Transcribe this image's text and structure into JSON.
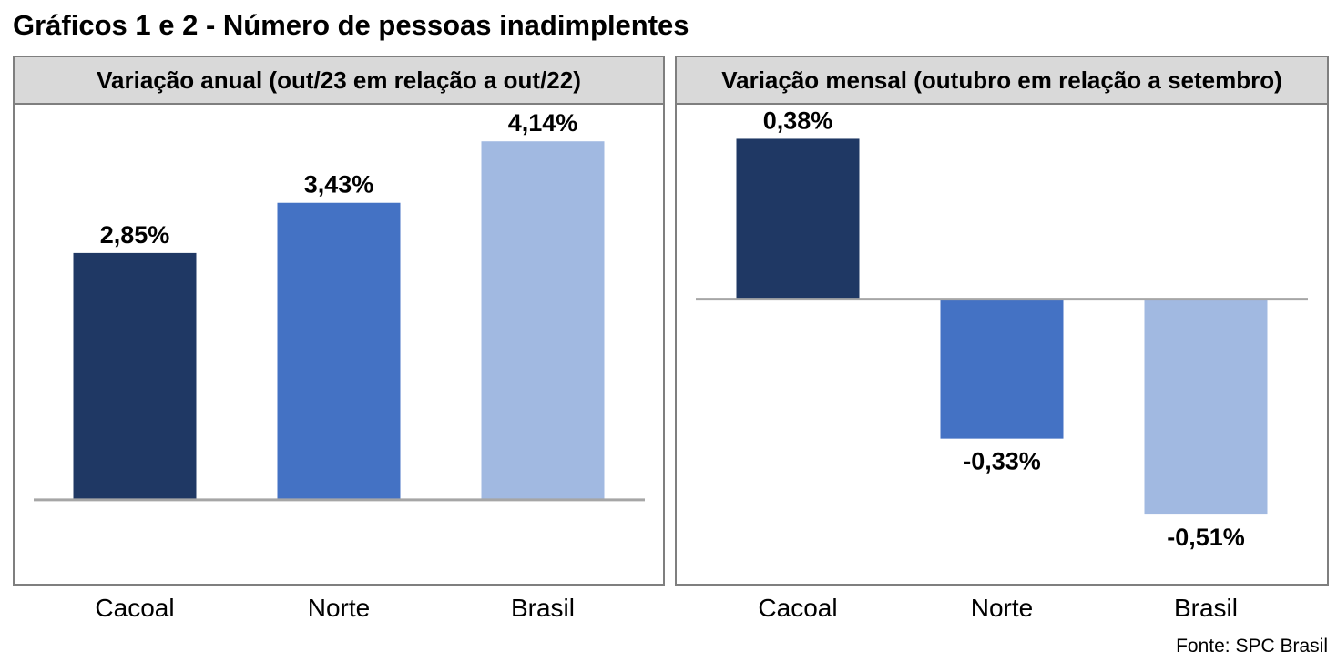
{
  "title": "Gráficos 1 e 2 - Número de pessoas inadimplentes",
  "colors": {
    "Cacoal": "#1f3864",
    "Norte": "#4472c4",
    "Brasil": "#a1b9e1",
    "axis": "#a6a6a6",
    "border": "#7f7f7f",
    "header_bg": "#d9d9d9"
  },
  "chart_data": [
    {
      "type": "bar",
      "title": "Variação anual (out/23 em relação a out/22)",
      "categories": [
        "Cacoal",
        "Norte",
        "Brasil"
      ],
      "values": [
        2.85,
        3.43,
        4.14
      ],
      "value_labels": [
        "2,85%",
        "3,43%",
        "4,14%"
      ],
      "unit": "%",
      "ylim": [
        -0.8,
        4.3
      ],
      "grid": false,
      "legend": "none"
    },
    {
      "type": "bar",
      "title": "Variação mensal (outubro em relação a setembro)",
      "categories": [
        "Cacoal",
        "Norte",
        "Brasil"
      ],
      "values": [
        0.38,
        -0.33,
        -0.51
      ],
      "value_labels": [
        "0,38%",
        "-0,33%",
        "-0,51%"
      ],
      "unit": "%",
      "ylim": [
        -0.65,
        0.45
      ],
      "grid": false,
      "legend": "none"
    }
  ],
  "source": "Fonte: SPC Brasil"
}
